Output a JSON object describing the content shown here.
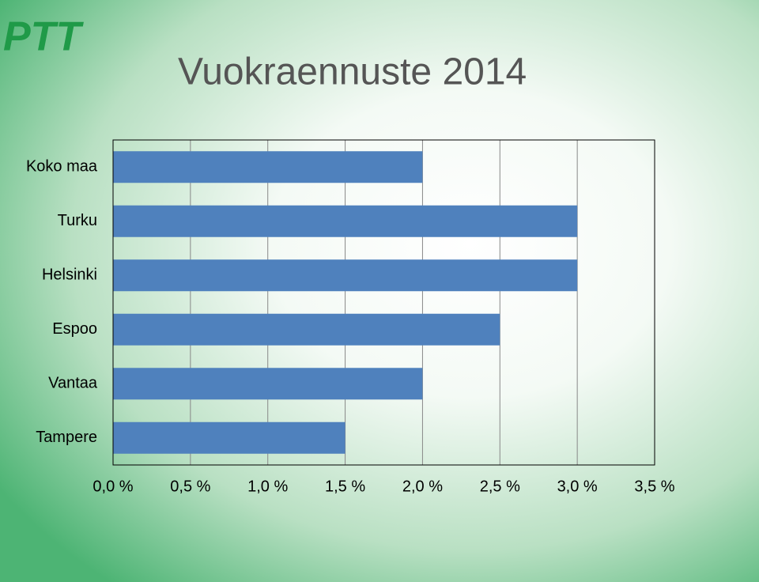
{
  "logo": "PTT",
  "chart_data": {
    "type": "barh",
    "title": "Vuokraennuste 2014",
    "categories": [
      "Koko maa",
      "Turku",
      "Helsinki",
      "Espoo",
      "Vantaa",
      "Tampere"
    ],
    "values": [
      2.0,
      3.0,
      3.0,
      2.5,
      2.0,
      1.5
    ],
    "color": "#4f81bd",
    "xlim": [
      0,
      3.5
    ],
    "xticks": [
      {
        "value": 0,
        "label": "0,0 %"
      },
      {
        "value": 0.5,
        "label": "0,5 %"
      },
      {
        "value": 1,
        "label": "1,0 %"
      },
      {
        "value": 1.5,
        "label": "1,5 %"
      },
      {
        "value": 2,
        "label": "2,0 %"
      },
      {
        "value": 2.5,
        "label": "2,5 %"
      },
      {
        "value": 3,
        "label": "3,0 %"
      },
      {
        "value": 3.5,
        "label": "3,5 %"
      }
    ],
    "grid": true
  }
}
